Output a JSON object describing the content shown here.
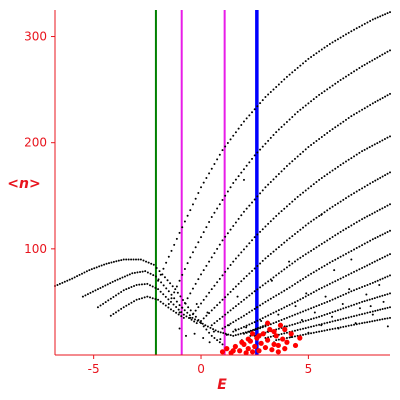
{
  "chart_data": {
    "type": "scatter",
    "xlabel": "E",
    "ylabel": "<n>",
    "xlim": [
      -6.8,
      8.8
    ],
    "ylim": [
      0,
      325
    ],
    "x_ticks": [
      -5,
      0,
      5
    ],
    "x_tick_labels": [
      "-5",
      "0",
      "5"
    ],
    "y_ticks": [
      100,
      200,
      300
    ],
    "y_tick_labels": [
      "100",
      "200",
      "300"
    ],
    "grid": false,
    "legend": "none",
    "colors": {
      "axis": "#e8141d",
      "points": "#000000",
      "highlight_points": "#ff0000",
      "line_green": "#008000",
      "line_magenta": "#e81ce8",
      "line_blue": "#0000ff"
    },
    "vertical_lines": [
      {
        "x": -2.1,
        "color": "#008000"
      },
      {
        "x": -0.9,
        "color": "#e81ce8"
      },
      {
        "x": 1.1,
        "color": "#e81ce8"
      },
      {
        "x": 2.6,
        "color": "#0000ff"
      }
    ],
    "families": [
      {
        "points": [
          [
            -6.8,
            65
          ],
          [
            -6.0,
            72
          ],
          [
            -5.2,
            80
          ],
          [
            -4.4,
            86
          ],
          [
            -3.6,
            90
          ],
          [
            -2.8,
            90
          ],
          [
            -2.2,
            85
          ],
          [
            -1.8,
            76
          ],
          [
            -1.2,
            62
          ],
          [
            -0.6,
            45
          ],
          [
            0.0,
            30
          ],
          [
            0.5,
            18
          ],
          [
            1.0,
            10
          ]
        ]
      },
      {
        "points": [
          [
            -5.5,
            55
          ],
          [
            -4.8,
            62
          ],
          [
            -4.0,
            70
          ],
          [
            -3.2,
            77
          ],
          [
            -2.6,
            79
          ],
          [
            -2.1,
            74
          ],
          [
            -1.5,
            60
          ],
          [
            -1.0,
            47
          ],
          [
            -0.4,
            35
          ],
          [
            0.2,
            28
          ],
          [
            0.8,
            22
          ],
          [
            1.5,
            18
          ],
          [
            2.2,
            22
          ],
          [
            3.0,
            28
          ]
        ]
      },
      {
        "points": [
          [
            -4.8,
            45
          ],
          [
            -4.2,
            53
          ],
          [
            -3.6,
            61
          ],
          [
            -3.0,
            66
          ],
          [
            -2.5,
            67
          ],
          [
            -2.0,
            62
          ],
          [
            -1.4,
            50
          ],
          [
            -0.8,
            38
          ],
          [
            -0.2,
            30
          ]
        ]
      },
      {
        "points": [
          [
            -4.2,
            37
          ],
          [
            -3.6,
            45
          ],
          [
            -3.0,
            52
          ],
          [
            -2.5,
            55
          ],
          [
            -2.0,
            52
          ],
          [
            -1.4,
            43
          ],
          [
            -0.8,
            35
          ]
        ]
      },
      {
        "points": [
          [
            -2.0,
            70
          ],
          [
            -1.0,
            115
          ],
          [
            0.0,
            158
          ],
          [
            1.0,
            193
          ],
          [
            2.0,
            220
          ],
          [
            3.0,
            243
          ],
          [
            4.0,
            262
          ],
          [
            5.0,
            279
          ],
          [
            6.0,
            293
          ],
          [
            7.0,
            305
          ],
          [
            8.0,
            316
          ],
          [
            8.8,
            323
          ]
        ]
      },
      {
        "points": [
          [
            -1.5,
            48
          ],
          [
            -0.5,
            92
          ],
          [
            0.5,
            130
          ],
          [
            1.5,
            162
          ],
          [
            2.5,
            188
          ],
          [
            3.5,
            210
          ],
          [
            4.5,
            229
          ],
          [
            5.5,
            245
          ],
          [
            6.5,
            259
          ],
          [
            7.5,
            272
          ],
          [
            8.8,
            287
          ]
        ]
      },
      {
        "points": [
          [
            -1.0,
            40
          ],
          [
            0.0,
            76
          ],
          [
            1.0,
            108
          ],
          [
            2.0,
            135
          ],
          [
            3.0,
            158
          ],
          [
            4.0,
            178
          ],
          [
            5.0,
            196
          ],
          [
            6.0,
            211
          ],
          [
            7.0,
            225
          ],
          [
            8.0,
            237
          ],
          [
            8.8,
            246
          ]
        ]
      },
      {
        "points": [
          [
            -0.5,
            35
          ],
          [
            0.5,
            62
          ],
          [
            1.5,
            88
          ],
          [
            2.5,
            111
          ],
          [
            3.5,
            131
          ],
          [
            4.5,
            149
          ],
          [
            5.5,
            165
          ],
          [
            6.5,
            179
          ],
          [
            7.5,
            192
          ],
          [
            8.8,
            206
          ]
        ]
      },
      {
        "points": [
          [
            0.0,
            32
          ],
          [
            1.0,
            52
          ],
          [
            2.0,
            72
          ],
          [
            3.0,
            91
          ],
          [
            4.0,
            108
          ],
          [
            5.0,
            124
          ],
          [
            6.0,
            138
          ],
          [
            7.0,
            151
          ],
          [
            8.0,
            163
          ],
          [
            8.8,
            172
          ]
        ]
      },
      {
        "points": [
          [
            0.5,
            28
          ],
          [
            1.5,
            44
          ],
          [
            2.5,
            60
          ],
          [
            3.5,
            75
          ],
          [
            4.5,
            90
          ],
          [
            5.5,
            103
          ],
          [
            6.5,
            116
          ],
          [
            7.5,
            128
          ],
          [
            8.8,
            142
          ]
        ]
      },
      {
        "points": [
          [
            1.0,
            25
          ],
          [
            2.0,
            37
          ],
          [
            3.0,
            50
          ],
          [
            4.0,
            62
          ],
          [
            5.0,
            75
          ],
          [
            6.0,
            87
          ],
          [
            7.0,
            98
          ],
          [
            8.0,
            109
          ],
          [
            8.8,
            117
          ]
        ]
      },
      {
        "points": [
          [
            1.5,
            22
          ],
          [
            2.5,
            31
          ],
          [
            3.5,
            41
          ],
          [
            4.5,
            51
          ],
          [
            5.5,
            62
          ],
          [
            6.5,
            72
          ],
          [
            7.5,
            82
          ],
          [
            8.8,
            95
          ]
        ]
      },
      {
        "points": [
          [
            2.0,
            20
          ],
          [
            3.0,
            27
          ],
          [
            4.0,
            35
          ],
          [
            5.0,
            43
          ],
          [
            6.0,
            51
          ],
          [
            7.0,
            60
          ],
          [
            8.0,
            68
          ],
          [
            8.8,
            75
          ]
        ]
      },
      {
        "points": [
          [
            2.5,
            18
          ],
          [
            3.5,
            24
          ],
          [
            4.5,
            30
          ],
          [
            5.5,
            36
          ],
          [
            6.5,
            43
          ],
          [
            7.5,
            50
          ],
          [
            8.8,
            58
          ]
        ]
      },
      {
        "points": [
          [
            3.0,
            16
          ],
          [
            4.0,
            21
          ],
          [
            5.0,
            26
          ],
          [
            6.0,
            31
          ],
          [
            7.0,
            36
          ],
          [
            8.0,
            41
          ],
          [
            8.8,
            45
          ]
        ]
      },
      {
        "points": [
          [
            3.5,
            14
          ],
          [
            4.5,
            18
          ],
          [
            5.5,
            22
          ],
          [
            6.5,
            26
          ],
          [
            7.5,
            30
          ],
          [
            8.8,
            35
          ]
        ]
      }
    ],
    "scattered_points": [
      [
        -1.0,
        25
      ],
      [
        -0.7,
        18
      ],
      [
        -0.3,
        20
      ],
      [
        0.1,
        16
      ],
      [
        0.4,
        12
      ],
      [
        0.6,
        22
      ],
      [
        0.9,
        15
      ],
      [
        1.2,
        19
      ],
      [
        1.3,
        28
      ],
      [
        1.6,
        24
      ],
      [
        1.9,
        14
      ],
      [
        2.1,
        26
      ],
      [
        2.3,
        18
      ],
      [
        2.8,
        32
      ],
      [
        3.1,
        22
      ],
      [
        3.4,
        12
      ],
      [
        3.6,
        38
      ],
      [
        3.9,
        27
      ],
      [
        4.2,
        17
      ],
      [
        4.4,
        46
      ],
      [
        4.7,
        33
      ],
      [
        5.0,
        21
      ],
      [
        5.3,
        40
      ],
      [
        5.6,
        28
      ],
      [
        5.8,
        55
      ],
      [
        6.1,
        36
      ],
      [
        6.4,
        25
      ],
      [
        6.6,
        48
      ],
      [
        6.9,
        62
      ],
      [
        7.2,
        30
      ],
      [
        7.4,
        44
      ],
      [
        7.7,
        57
      ],
      [
        8.0,
        38
      ],
      [
        8.3,
        66
      ],
      [
        8.5,
        50
      ],
      [
        8.7,
        27
      ],
      [
        2.0,
        165
      ],
      [
        5.6,
        132
      ],
      [
        4.1,
        88
      ],
      [
        7.9,
        46
      ],
      [
        -0.2,
        48
      ],
      [
        0.3,
        40
      ],
      [
        1.7,
        55
      ],
      [
        2.6,
        45
      ],
      [
        6.2,
        80
      ],
      [
        7.0,
        90
      ],
      [
        3.3,
        70
      ],
      [
        4.9,
        58
      ]
    ],
    "red_points": [
      [
        1.0,
        3
      ],
      [
        1.2,
        6
      ],
      [
        1.4,
        2
      ],
      [
        1.6,
        8
      ],
      [
        1.8,
        4
      ],
      [
        2.0,
        10
      ],
      [
        2.1,
        2
      ],
      [
        2.2,
        6
      ],
      [
        2.3,
        13
      ],
      [
        2.4,
        3
      ],
      [
        2.5,
        8
      ],
      [
        2.6,
        16
      ],
      [
        2.7,
        4
      ],
      [
        2.8,
        11
      ],
      [
        2.9,
        20
      ],
      [
        3.0,
        7
      ],
      [
        3.1,
        14
      ],
      [
        3.2,
        24
      ],
      [
        3.3,
        5
      ],
      [
        3.4,
        10
      ],
      [
        3.5,
        18
      ],
      [
        3.6,
        9
      ],
      [
        3.7,
        28
      ],
      [
        3.8,
        15
      ],
      [
        3.9,
        6
      ],
      [
        4.0,
        12
      ],
      [
        4.2,
        20
      ],
      [
        4.4,
        9
      ],
      [
        4.6,
        16
      ],
      [
        2.2,
        15
      ],
      [
        1.9,
        12
      ],
      [
        2.7,
        18
      ],
      [
        3.1,
        30
      ],
      [
        3.4,
        22
      ],
      [
        1.5,
        4
      ],
      [
        3.6,
        3
      ],
      [
        3.9,
        24
      ],
      [
        2.4,
        20
      ]
    ]
  }
}
